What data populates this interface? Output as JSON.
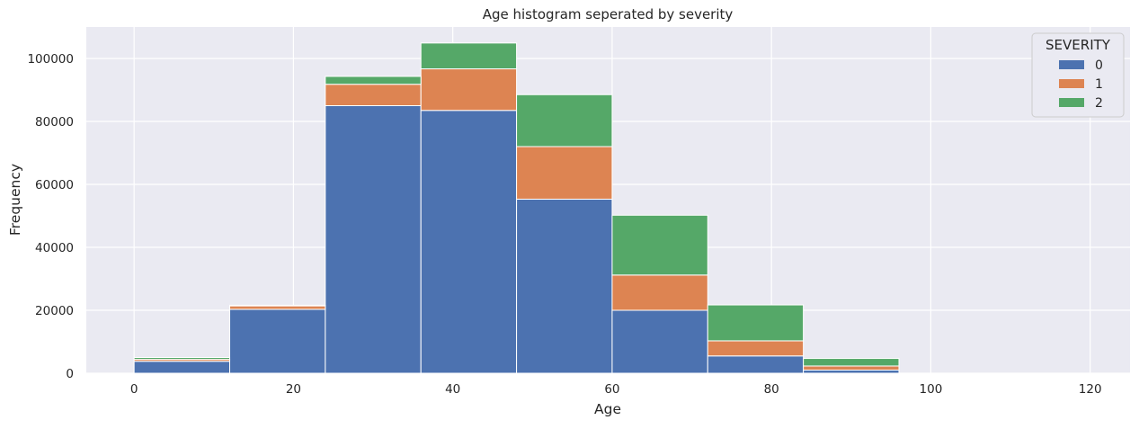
{
  "chart_data": {
    "type": "bar",
    "stacked": true,
    "histogram": true,
    "title": "Age histogram seperated by severity",
    "xlabel": "Age",
    "ylabel": "Frequency",
    "xlim": [
      -6,
      125
    ],
    "ylim": [
      0,
      110000
    ],
    "xticks": [
      0,
      20,
      40,
      60,
      80,
      100,
      120
    ],
    "yticks": [
      0,
      20000,
      40000,
      60000,
      80000,
      100000
    ],
    "bin_edges": [
      0,
      12,
      24,
      36,
      48,
      60,
      72,
      84,
      96,
      108,
      120
    ],
    "series": [
      {
        "name": "0",
        "color": "#4c72b0",
        "values": [
          3800,
          20300,
          85000,
          83500,
          55300,
          20000,
          5500,
          1000,
          0,
          0
        ]
      },
      {
        "name": "1",
        "color": "#dd8452",
        "values": [
          600,
          1100,
          6800,
          13200,
          16700,
          11200,
          4800,
          1300,
          0,
          0
        ]
      },
      {
        "name": "2",
        "color": "#55a868",
        "values": [
          600,
          200,
          2500,
          8200,
          16500,
          19000,
          11400,
          2400,
          0,
          0
        ]
      }
    ],
    "legend": {
      "title": "SEVERITY",
      "position": "top-right"
    },
    "grid": true,
    "background": "#eaeaf2",
    "grid_color": "#ffffff"
  }
}
